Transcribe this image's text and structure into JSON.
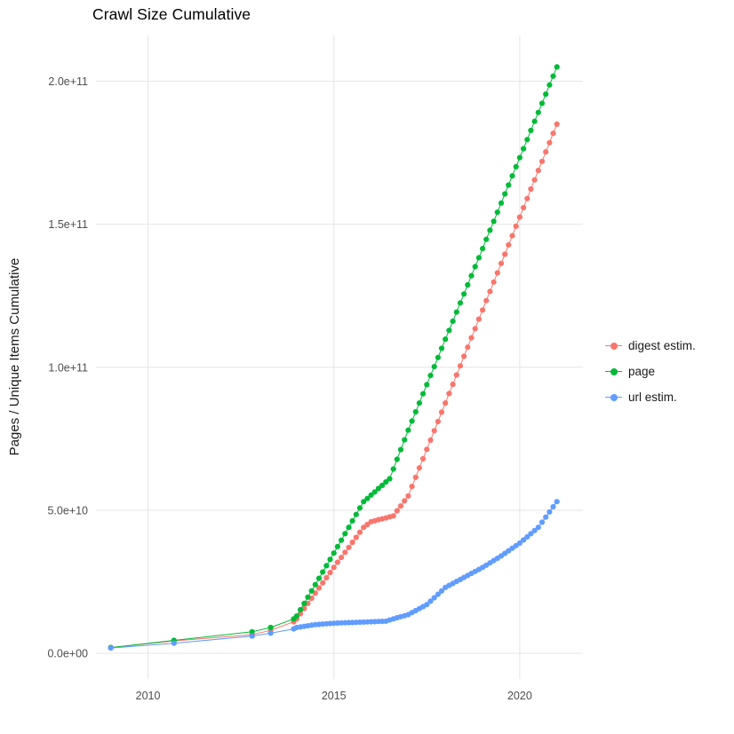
{
  "title": "Crawl Size Cumulative",
  "axes": {
    "y_label": "Pages / Unique Items Cumulative",
    "x_label": ""
  },
  "colors": {
    "grid": "#e5e5e5",
    "tick_text": "#4d4d4d",
    "title_text": "#000000"
  },
  "legend": {
    "items": [
      {
        "label": "digest estim.",
        "color": "#F8766D"
      },
      {
        "label": "page",
        "color": "#00BA38"
      },
      {
        "label": "url estim.",
        "color": "#619CFF"
      }
    ]
  },
  "chart_data": {
    "type": "scatter",
    "title": "Crawl Size Cumulative",
    "xlabel": "",
    "ylabel": "Pages / Unique Items Cumulative",
    "xlim": [
      2008.6,
      2021.7
    ],
    "ylim": [
      -9000000000,
      216000000000
    ],
    "grid": true,
    "legend_position": "right",
    "value_unit": 1000000000,
    "x_ticks": [
      {
        "value": 2010,
        "label": "2010"
      },
      {
        "value": 2015,
        "label": "2015"
      },
      {
        "value": 2020,
        "label": "2020"
      }
    ],
    "y_ticks": [
      {
        "value": 0,
        "label": "0.0e+00"
      },
      {
        "value": 50000000000,
        "label": "5.0e+10"
      },
      {
        "value": 100000000000,
        "label": "1.0e+11"
      },
      {
        "value": 150000000000,
        "label": "1.5e+11"
      },
      {
        "value": 200000000000,
        "label": "2.0e+11"
      }
    ],
    "series": [
      {
        "name": "digest estim.",
        "color": "#F8766D",
        "points": [
          [
            2009.0,
            2.0
          ],
          [
            2010.7,
            4.3
          ],
          [
            2012.8,
            6.5
          ],
          [
            2013.3,
            8.0
          ],
          [
            2013.92,
            11.0
          ],
          [
            2014.0,
            12.0
          ],
          [
            2014.1,
            13.8
          ],
          [
            2014.2,
            15.6
          ],
          [
            2014.3,
            17.4
          ],
          [
            2014.4,
            19.2
          ],
          [
            2014.5,
            21.0
          ],
          [
            2014.6,
            22.8
          ],
          [
            2014.7,
            24.6
          ],
          [
            2014.8,
            26.4
          ],
          [
            2014.9,
            28.2
          ],
          [
            2015.0,
            30.0
          ],
          [
            2015.1,
            31.8
          ],
          [
            2015.2,
            33.5
          ],
          [
            2015.3,
            35.3
          ],
          [
            2015.4,
            37.0
          ],
          [
            2015.5,
            38.8
          ],
          [
            2015.6,
            40.5
          ],
          [
            2015.7,
            42.3
          ],
          [
            2015.8,
            44.0
          ],
          [
            2015.9,
            45.0
          ],
          [
            2016.0,
            46.0
          ],
          [
            2016.1,
            46.3
          ],
          [
            2016.2,
            46.7
          ],
          [
            2016.3,
            47.0
          ],
          [
            2016.4,
            47.3
          ],
          [
            2016.5,
            47.7
          ],
          [
            2016.6,
            48.0
          ],
          [
            2016.7,
            49.8
          ],
          [
            2016.8,
            51.5
          ],
          [
            2016.9,
            53.3
          ],
          [
            2017.0,
            55.0
          ],
          [
            2017.1,
            58.3
          ],
          [
            2017.2,
            61.5
          ],
          [
            2017.3,
            64.8
          ],
          [
            2017.4,
            68.0
          ],
          [
            2017.5,
            71.3
          ],
          [
            2017.6,
            74.5
          ],
          [
            2017.7,
            77.8
          ],
          [
            2017.8,
            81.0
          ],
          [
            2017.9,
            84.3
          ],
          [
            2018.0,
            87.5
          ],
          [
            2018.1,
            90.8
          ],
          [
            2018.2,
            94.0
          ],
          [
            2018.3,
            97.3
          ],
          [
            2018.4,
            100.5
          ],
          [
            2018.5,
            103.8
          ],
          [
            2018.6,
            107.0
          ],
          [
            2018.7,
            110.3
          ],
          [
            2018.8,
            113.5
          ],
          [
            2018.9,
            116.8
          ],
          [
            2019.0,
            120.0
          ],
          [
            2019.1,
            123.3
          ],
          [
            2019.2,
            126.5
          ],
          [
            2019.3,
            129.8
          ],
          [
            2019.4,
            133.0
          ],
          [
            2019.5,
            136.3
          ],
          [
            2019.6,
            139.5
          ],
          [
            2019.7,
            142.8
          ],
          [
            2019.8,
            146.0
          ],
          [
            2019.9,
            149.3
          ],
          [
            2020.0,
            152.5
          ],
          [
            2020.1,
            155.8
          ],
          [
            2020.2,
            159.0
          ],
          [
            2020.3,
            162.3
          ],
          [
            2020.4,
            165.5
          ],
          [
            2020.5,
            168.8
          ],
          [
            2020.6,
            172.0
          ],
          [
            2020.7,
            175.3
          ],
          [
            2020.8,
            178.5
          ],
          [
            2020.9,
            181.8
          ],
          [
            2021.0,
            185.0
          ]
        ]
      },
      {
        "name": "page",
        "color": "#00BA38",
        "points": [
          [
            2009.0,
            2.0
          ],
          [
            2010.7,
            4.5
          ],
          [
            2012.8,
            7.5
          ],
          [
            2013.3,
            9.0
          ],
          [
            2013.92,
            12.0
          ],
          [
            2014.0,
            13.0
          ],
          [
            2014.1,
            15.2
          ],
          [
            2014.2,
            17.4
          ],
          [
            2014.3,
            19.6
          ],
          [
            2014.4,
            21.8
          ],
          [
            2014.5,
            24.0
          ],
          [
            2014.6,
            26.2
          ],
          [
            2014.7,
            28.4
          ],
          [
            2014.8,
            30.6
          ],
          [
            2014.9,
            32.8
          ],
          [
            2015.0,
            35.0
          ],
          [
            2015.1,
            37.3
          ],
          [
            2015.2,
            39.5
          ],
          [
            2015.3,
            41.8
          ],
          [
            2015.4,
            44.0
          ],
          [
            2015.5,
            46.3
          ],
          [
            2015.6,
            48.5
          ],
          [
            2015.7,
            50.8
          ],
          [
            2015.8,
            53.0
          ],
          [
            2015.9,
            54.1
          ],
          [
            2016.0,
            55.3
          ],
          [
            2016.1,
            56.4
          ],
          [
            2016.2,
            57.6
          ],
          [
            2016.3,
            58.7
          ],
          [
            2016.4,
            59.9
          ],
          [
            2016.5,
            61.0
          ],
          [
            2016.6,
            64.4
          ],
          [
            2016.7,
            67.8
          ],
          [
            2016.8,
            71.2
          ],
          [
            2016.9,
            74.6
          ],
          [
            2017.0,
            78.0
          ],
          [
            2017.1,
            81.2
          ],
          [
            2017.2,
            84.4
          ],
          [
            2017.3,
            87.5
          ],
          [
            2017.4,
            90.7
          ],
          [
            2017.5,
            93.9
          ],
          [
            2017.6,
            97.1
          ],
          [
            2017.7,
            100.2
          ],
          [
            2017.8,
            103.4
          ],
          [
            2017.9,
            106.6
          ],
          [
            2018.0,
            109.8
          ],
          [
            2018.1,
            112.9
          ],
          [
            2018.2,
            116.1
          ],
          [
            2018.3,
            119.3
          ],
          [
            2018.4,
            122.5
          ],
          [
            2018.5,
            125.6
          ],
          [
            2018.6,
            128.8
          ],
          [
            2018.7,
            132.0
          ],
          [
            2018.8,
            135.2
          ],
          [
            2018.9,
            138.3
          ],
          [
            2019.0,
            141.5
          ],
          [
            2019.1,
            144.7
          ],
          [
            2019.2,
            147.9
          ],
          [
            2019.3,
            151.0
          ],
          [
            2019.4,
            154.2
          ],
          [
            2019.5,
            157.4
          ],
          [
            2019.6,
            160.6
          ],
          [
            2019.7,
            163.7
          ],
          [
            2019.8,
            166.9
          ],
          [
            2019.9,
            170.1
          ],
          [
            2020.0,
            173.3
          ],
          [
            2020.1,
            176.4
          ],
          [
            2020.2,
            179.6
          ],
          [
            2020.3,
            182.8
          ],
          [
            2020.4,
            186.0
          ],
          [
            2020.5,
            189.1
          ],
          [
            2020.6,
            192.3
          ],
          [
            2020.7,
            195.5
          ],
          [
            2020.8,
            198.7
          ],
          [
            2020.9,
            201.8
          ],
          [
            2021.0,
            205.0
          ]
        ]
      },
      {
        "name": "url estim.",
        "color": "#619CFF",
        "points": [
          [
            2009.0,
            1.8
          ],
          [
            2010.7,
            3.5
          ],
          [
            2012.8,
            6.0
          ],
          [
            2013.3,
            7.0
          ],
          [
            2013.92,
            8.5
          ],
          [
            2014.0,
            9.0
          ],
          [
            2014.1,
            9.2
          ],
          [
            2014.2,
            9.4
          ],
          [
            2014.3,
            9.6
          ],
          [
            2014.4,
            9.8
          ],
          [
            2014.5,
            10.0
          ],
          [
            2014.6,
            10.1
          ],
          [
            2014.7,
            10.2
          ],
          [
            2014.8,
            10.3
          ],
          [
            2014.9,
            10.4
          ],
          [
            2015.0,
            10.5
          ],
          [
            2015.1,
            10.55
          ],
          [
            2015.2,
            10.6
          ],
          [
            2015.3,
            10.65
          ],
          [
            2015.4,
            10.7
          ],
          [
            2015.5,
            10.75
          ],
          [
            2015.6,
            10.8
          ],
          [
            2015.7,
            10.85
          ],
          [
            2015.8,
            10.9
          ],
          [
            2015.9,
            10.95
          ],
          [
            2016.0,
            11.0
          ],
          [
            2016.1,
            11.05
          ],
          [
            2016.2,
            11.1
          ],
          [
            2016.3,
            11.15
          ],
          [
            2016.4,
            11.2
          ],
          [
            2016.5,
            11.6
          ],
          [
            2016.6,
            12.0
          ],
          [
            2016.7,
            12.4
          ],
          [
            2016.8,
            12.8
          ],
          [
            2016.9,
            13.1
          ],
          [
            2017.0,
            13.5
          ],
          [
            2017.1,
            14.2
          ],
          [
            2017.2,
            14.9
          ],
          [
            2017.3,
            15.6
          ],
          [
            2017.4,
            16.3
          ],
          [
            2017.5,
            17.0
          ],
          [
            2017.6,
            18.2
          ],
          [
            2017.7,
            19.4
          ],
          [
            2017.8,
            20.6
          ],
          [
            2017.9,
            21.8
          ],
          [
            2018.0,
            23.0
          ],
          [
            2018.1,
            23.7
          ],
          [
            2018.2,
            24.4
          ],
          [
            2018.3,
            25.1
          ],
          [
            2018.4,
            25.8
          ],
          [
            2018.5,
            26.5
          ],
          [
            2018.6,
            27.2
          ],
          [
            2018.7,
            27.9
          ],
          [
            2018.8,
            28.6
          ],
          [
            2018.9,
            29.3
          ],
          [
            2019.0,
            30.0
          ],
          [
            2019.1,
            30.8
          ],
          [
            2019.2,
            31.6
          ],
          [
            2019.3,
            32.4
          ],
          [
            2019.4,
            33.2
          ],
          [
            2019.5,
            34.0
          ],
          [
            2019.6,
            34.9
          ],
          [
            2019.7,
            35.8
          ],
          [
            2019.8,
            36.7
          ],
          [
            2019.9,
            37.6
          ],
          [
            2020.0,
            38.5
          ],
          [
            2020.1,
            39.6
          ],
          [
            2020.2,
            40.7
          ],
          [
            2020.3,
            41.8
          ],
          [
            2020.4,
            42.9
          ],
          [
            2020.5,
            44.0
          ],
          [
            2020.6,
            45.8
          ],
          [
            2020.7,
            47.6
          ],
          [
            2020.8,
            49.4
          ],
          [
            2020.9,
            51.2
          ],
          [
            2021.0,
            53.0
          ]
        ]
      }
    ]
  }
}
